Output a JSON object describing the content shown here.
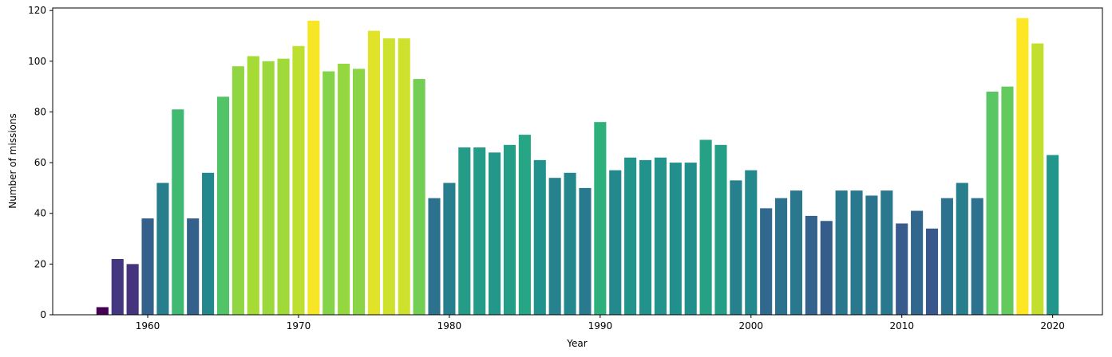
{
  "chart_data": {
    "type": "bar",
    "title": "",
    "xlabel": "Year",
    "ylabel": "Number of missions",
    "xlim": [
      1953.7,
      2023.3
    ],
    "ylim": [
      0,
      121
    ],
    "xticks": [
      1960,
      1970,
      1980,
      1990,
      2000,
      2010,
      2020
    ],
    "yticks": [
      0,
      20,
      40,
      60,
      80,
      100,
      120
    ],
    "grid": false,
    "colormap": "viridis",
    "color_range": [
      3,
      117
    ],
    "x": [
      1957,
      1958,
      1959,
      1960,
      1961,
      1962,
      1963,
      1964,
      1965,
      1966,
      1967,
      1968,
      1969,
      1970,
      1971,
      1972,
      1973,
      1974,
      1975,
      1976,
      1977,
      1978,
      1979,
      1980,
      1981,
      1982,
      1983,
      1984,
      1985,
      1986,
      1987,
      1988,
      1989,
      1990,
      1991,
      1992,
      1993,
      1994,
      1995,
      1996,
      1997,
      1998,
      1999,
      2000,
      2001,
      2002,
      2003,
      2004,
      2005,
      2006,
      2007,
      2008,
      2009,
      2010,
      2011,
      2012,
      2013,
      2014,
      2015,
      2016,
      2017,
      2018,
      2019,
      2020
    ],
    "values": [
      3,
      22,
      20,
      38,
      52,
      81,
      38,
      56,
      86,
      98,
      102,
      100,
      101,
      106,
      116,
      96,
      99,
      97,
      112,
      109,
      109,
      93,
      46,
      52,
      66,
      66,
      64,
      67,
      71,
      61,
      54,
      56,
      50,
      76,
      57,
      62,
      61,
      62,
      60,
      60,
      69,
      67,
      53,
      57,
      42,
      46,
      49,
      39,
      37,
      49,
      49,
      47,
      49,
      36,
      41,
      34,
      46,
      52,
      46,
      88,
      90,
      117,
      107,
      63
    ]
  }
}
